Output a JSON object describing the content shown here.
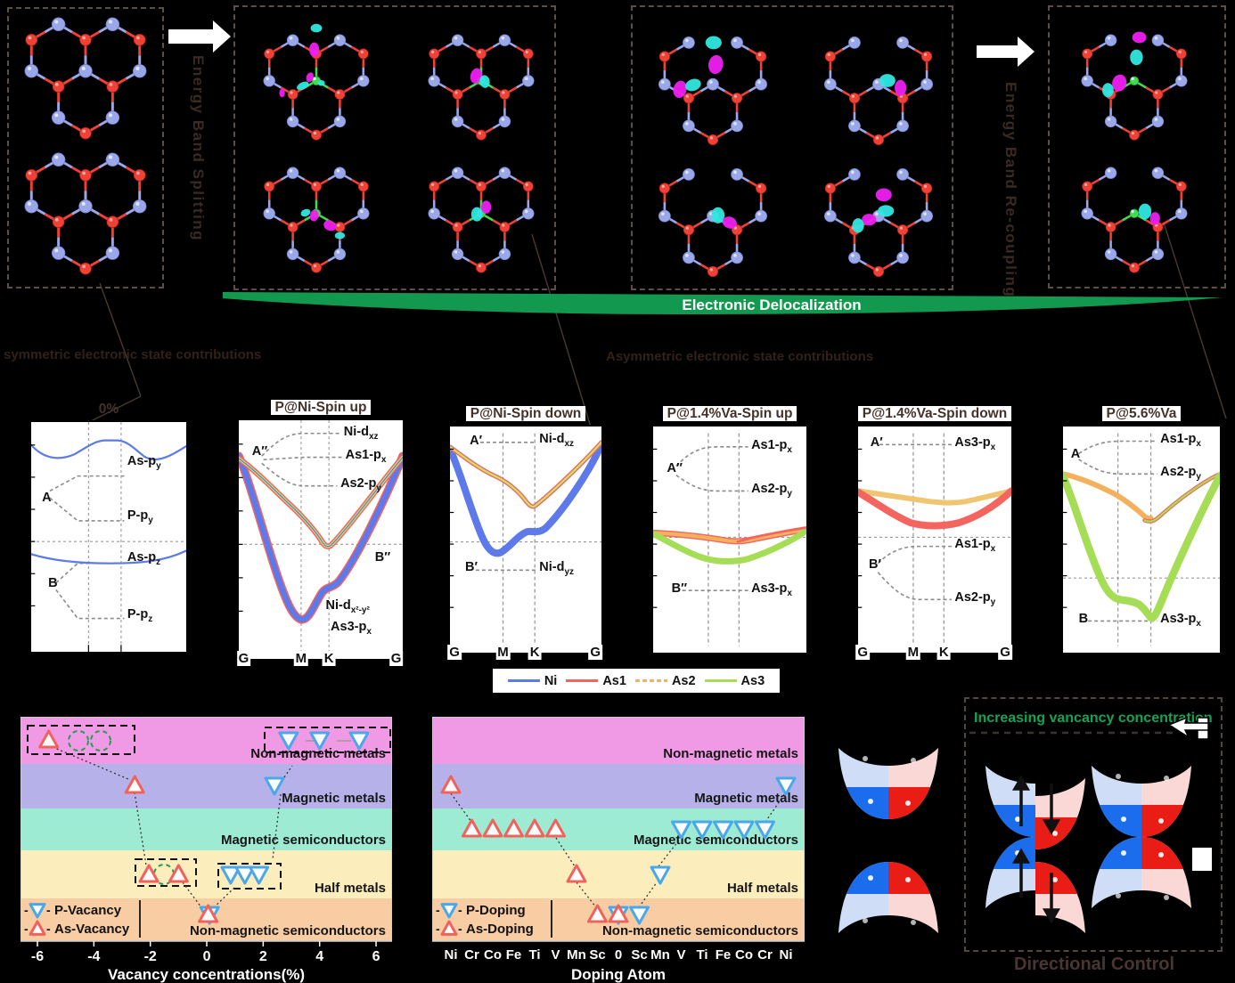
{
  "top": {
    "energy_band_splitting": "Energy Band Splitting",
    "energy_band_recoupling": "Energy Band Re-coupling",
    "electronic_delocalization": "Electronic Delocalization",
    "symmetric_label": "symmetric electronic state contributions",
    "asymmetric_label": "Asymmetric electronic state contributions"
  },
  "band_panels": [
    {
      "title": "0%",
      "labels": [
        {
          "base": "A",
          "sub": ""
        },
        {
          "base": "As-p",
          "sub": "y"
        },
        {
          "base": "P-p",
          "sub": "y"
        },
        {
          "base": "B",
          "sub": ""
        },
        {
          "base": "As-p",
          "sub": "z"
        },
        {
          "base": "P-p",
          "sub": "z"
        }
      ]
    },
    {
      "title": "P@Ni-Spin up",
      "klabels": [
        "G",
        "M",
        "K",
        "G"
      ],
      "labels": [
        {
          "base": "A″",
          "sub": ""
        },
        {
          "base": "Ni-d",
          "sub": "xz"
        },
        {
          "base": "As1-p",
          "sub": "x"
        },
        {
          "base": "As2-p",
          "sub": "y"
        },
        {
          "base": "B″",
          "sub": ""
        },
        {
          "base": "Ni-d",
          "sub": "x²-y²"
        },
        {
          "base": "As3-p",
          "sub": "x"
        }
      ]
    },
    {
      "title": "P@Ni-Spin down",
      "klabels": [
        "G",
        "M",
        "K",
        "G"
      ],
      "labels": [
        {
          "base": "A′",
          "sub": ""
        },
        {
          "base": "Ni-d",
          "sub": "xz"
        },
        {
          "base": "B′",
          "sub": ""
        },
        {
          "base": "Ni-d",
          "sub": "yz"
        }
      ]
    },
    {
      "title": "P@1.4%Va-Spin up",
      "labels": [
        {
          "base": "A″",
          "sub": ""
        },
        {
          "base": "As1-p",
          "sub": "x"
        },
        {
          "base": "As2-p",
          "sub": "y"
        },
        {
          "base": "B″",
          "sub": ""
        },
        {
          "base": "As3-p",
          "sub": "x"
        }
      ]
    },
    {
      "title": "P@1.4%Va-Spin down",
      "klabels": [
        "G",
        "M",
        "K",
        "G"
      ],
      "labels": [
        {
          "base": "A′",
          "sub": ""
        },
        {
          "base": "As3-p",
          "sub": "x"
        },
        {
          "base": "B′",
          "sub": ""
        },
        {
          "base": "As1-p",
          "sub": "x"
        },
        {
          "base": "As2-p",
          "sub": "y"
        }
      ]
    },
    {
      "title": "P@5.6%Va",
      "labels": [
        {
          "base": "A",
          "sub": ""
        },
        {
          "base": "As1-p",
          "sub": "x"
        },
        {
          "base": "As2-p",
          "sub": "y"
        },
        {
          "base": "B",
          "sub": ""
        },
        {
          "base": "As3-p",
          "sub": "x"
        }
      ]
    }
  ],
  "series_legend": {
    "entries": [
      {
        "label": "Ni",
        "color": "#5d79ea",
        "dashed": false
      },
      {
        "label": "As1",
        "color": "#f4655f",
        "dashed": false
      },
      {
        "label": "As2",
        "color": "#f3b15e",
        "dashed": true
      },
      {
        "label": "As3",
        "color": "#a6dd57",
        "dashed": false
      }
    ]
  },
  "chart_data": [
    {
      "type": "scatter",
      "title": "",
      "xlabel": "Vacancy concentrations(%)",
      "x_ticks": [
        -6,
        -4,
        -2,
        0,
        2,
        4,
        6
      ],
      "xlim": [
        -6.6,
        6.6
      ],
      "grid": false,
      "regions": [
        {
          "key": "nmm",
          "label": "Non-magnetic metals",
          "color": "#f09ae6"
        },
        {
          "key": "mm",
          "label": "Magnetic metals",
          "color": "#b6b2e9"
        },
        {
          "key": "ms",
          "label": "Magnetic semiconductors",
          "color": "#9debd2"
        },
        {
          "key": "hm",
          "label": "Half metals",
          "color": "#fcedbd"
        },
        {
          "key": "nms",
          "label": "Non-magnetic semiconductors",
          "color": "#f8cda4"
        }
      ],
      "legend": [
        {
          "label": "P-Vacancy",
          "marker": "down",
          "color": "#4aa8ea"
        },
        {
          "label": "As-Vacancy",
          "marker": "up",
          "color": "#f2625c"
        }
      ],
      "series": [
        {
          "name": "P-Vacancy",
          "marker": "down",
          "color": "#4aa8ea",
          "points": [
            {
              "x": 0.1,
              "region": "nms"
            },
            {
              "x": 0.85,
              "region": "hm"
            },
            {
              "x": 1.35,
              "region": "hm"
            },
            {
              "x": 1.85,
              "region": "hm"
            },
            {
              "x": 2.4,
              "region": "mm"
            },
            {
              "x": 2.9,
              "region": "nmm"
            },
            {
              "x": 4.0,
              "region": "nmm"
            },
            {
              "x": 5.4,
              "region": "nmm"
            }
          ]
        },
        {
          "name": "As-Vacancy",
          "marker": "up",
          "color": "#f2625c",
          "points": [
            {
              "x": -5.6,
              "region": "nmm"
            },
            {
              "x": -2.55,
              "region": "mm"
            },
            {
              "x": -2.05,
              "region": "hm"
            },
            {
              "x": -1.0,
              "region": "hm"
            },
            {
              "x": 0.05,
              "region": "nms"
            }
          ]
        }
      ]
    },
    {
      "type": "scatter",
      "title": "",
      "xlabel": "Doping Atom",
      "categories": [
        "Ni",
        "Cr",
        "Co",
        "Fe",
        "Ti",
        "V",
        "Mn",
        "Sc",
        "0",
        "Sc",
        "Mn",
        "V",
        "Ti",
        "Fe",
        "Co",
        "Cr",
        "Ni"
      ],
      "grid": false,
      "regions": [
        {
          "key": "nmm",
          "label": "Non-magnetic metals",
          "color": "#f09ae6"
        },
        {
          "key": "mm",
          "label": "Magnetic metals",
          "color": "#b6b2e9"
        },
        {
          "key": "ms",
          "label": "Magnetic semiconductors",
          "color": "#9debd2"
        },
        {
          "key": "hm",
          "label": "Half metals",
          "color": "#fcedbd"
        },
        {
          "key": "nms",
          "label": "Non-magnetic semiconductors",
          "color": "#f8cda4"
        }
      ],
      "legend": [
        {
          "label": "P-Doping",
          "marker": "down",
          "color": "#4aa8ea"
        },
        {
          "label": "As-Doping",
          "marker": "up",
          "color": "#f2625c"
        }
      ],
      "series": [
        {
          "name": "P-Doping",
          "marker": "down",
          "color": "#4aa8ea",
          "points": [
            {
              "i": 8,
              "region": "nms"
            },
            {
              "i": 9,
              "region": "nms"
            },
            {
              "i": 10,
              "region": "hm"
            },
            {
              "i": 11,
              "region": "ms"
            },
            {
              "i": 12,
              "region": "ms"
            },
            {
              "i": 13,
              "region": "ms"
            },
            {
              "i": 14,
              "region": "ms"
            },
            {
              "i": 15,
              "region": "ms"
            },
            {
              "i": 16,
              "region": "mm"
            }
          ]
        },
        {
          "name": "As-Doping",
          "marker": "up",
          "color": "#f2625c",
          "points": [
            {
              "i": 0,
              "region": "mm"
            },
            {
              "i": 1,
              "region": "ms"
            },
            {
              "i": 2,
              "region": "ms"
            },
            {
              "i": 3,
              "region": "ms"
            },
            {
              "i": 4,
              "region": "ms"
            },
            {
              "i": 5,
              "region": "ms"
            },
            {
              "i": 6,
              "region": "hm"
            },
            {
              "i": 7,
              "region": "nms"
            },
            {
              "i": 8,
              "region": "nms"
            }
          ]
        }
      ]
    }
  ],
  "bottom_right": {
    "increasing_label": "Increasing vancancy concentration",
    "directional_label": "Directional Control"
  }
}
